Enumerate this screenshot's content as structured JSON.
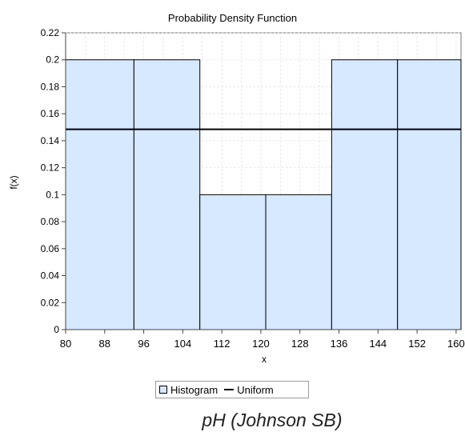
{
  "chart_data": {
    "type": "bar",
    "title": "Probability Density Function",
    "xlabel": "x",
    "ylabel": "f(x)",
    "x_ticks": [
      80,
      88,
      96,
      104,
      112,
      120,
      128,
      136,
      144,
      152,
      160
    ],
    "y_ticks": [
      "0",
      "0.02",
      "0.04",
      "0.06",
      "0.08",
      "0.1",
      "0.12",
      "0.14",
      "0.16",
      "0.18",
      "0.2",
      "0.22"
    ],
    "xlim": [
      80,
      161
    ],
    "ylim": [
      0,
      0.22
    ],
    "bins": [
      {
        "start": 80,
        "end": 94,
        "value": 0.2
      },
      {
        "start": 94,
        "end": 107.5,
        "value": 0.2
      },
      {
        "start": 107.5,
        "end": 121,
        "value": 0.1
      },
      {
        "start": 121,
        "end": 134.5,
        "value": 0.1
      },
      {
        "start": 134.5,
        "end": 148,
        "value": 0.2
      },
      {
        "start": 148,
        "end": 161,
        "value": 0.2
      }
    ],
    "series": [
      {
        "name": "Histogram",
        "color": "#d6e9ff"
      },
      {
        "name": "Uniform",
        "value": 0.1485,
        "color": "#000000"
      }
    ],
    "legend": {
      "placement": "bottom-center",
      "items": [
        "Histogram",
        "Uniform"
      ]
    }
  },
  "caption": "pH (Johnson SB)",
  "colors": {
    "histogram_fill": "#d6e9ff",
    "histogram_stroke": "#000000",
    "curve": "#000000",
    "grid": "#d9d9d9",
    "axis": "#444444"
  }
}
